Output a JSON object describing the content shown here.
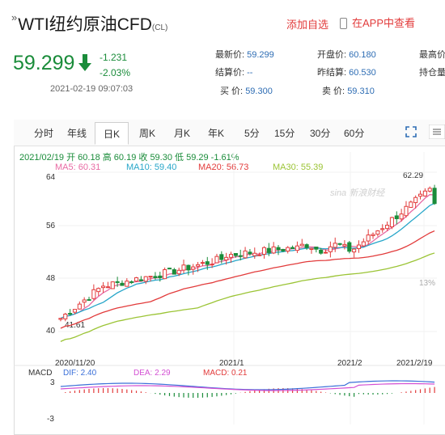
{
  "header": {
    "prefix": "»",
    "title": "WTI纽约原油CFD",
    "code": "(CL)",
    "add_watch": "添加自选",
    "app_view": "在APP中查看"
  },
  "quote": {
    "price": "59.299",
    "change": "-1.231",
    "change_pct": "-2.03%",
    "timestamp": "2021-02-19 09:07:03",
    "direction": "down"
  },
  "info": [
    {
      "label": "最新价:",
      "value": "59.299"
    },
    {
      "label": "开盘价:",
      "value": "60.180"
    },
    {
      "label": "最高价",
      "value": ""
    },
    {
      "label": "结算价:",
      "value": "--"
    },
    {
      "label": "昨结算:",
      "value": "60.530"
    },
    {
      "label": "持仓量",
      "value": ""
    },
    {
      "label": "买  价:",
      "value": "59.300"
    },
    {
      "label": "卖  价:",
      "value": "59.310"
    }
  ],
  "tabs": [
    "分时",
    "年线",
    "日K",
    "周K",
    "月K",
    "年K",
    "5分",
    "15分",
    "30分",
    "60分"
  ],
  "active_tab": "日K",
  "ohlc_line": "2021/02/19 开 60.18 高 60.19 收 59.30 低 59.29 -1.61%",
  "ma_labels": [
    {
      "text": "MA5: 60.31",
      "color": "#e86aa3"
    },
    {
      "text": "MA10: 59.40",
      "color": "#27a6c9"
    },
    {
      "text": "MA20: 56.73",
      "color": "#e23b3b"
    },
    {
      "text": "MA30: 55.39",
      "color": "#9bc435"
    }
  ],
  "watermark": "sina 新浪财经",
  "colors": {
    "up": "#e23b3b",
    "down": "#1a8c3a",
    "ma5": "#e86aa3",
    "ma10": "#27a6c9",
    "ma20": "#e23b3b",
    "ma30": "#9bc435",
    "dif": "#3a6fd8",
    "dea": "#d34fd3"
  },
  "chart_data": {
    "type": "candlestick",
    "y_ticks": [
      "64",
      "56",
      "48",
      "40"
    ],
    "pct_ticks": [
      "13%"
    ],
    "x_ticks": [
      "2020/11/20",
      "2021/1",
      "2021/2",
      "2021/2/19"
    ],
    "annotations": {
      "high": "62.29",
      "low": "41.61"
    },
    "ylim": [
      40,
      64
    ],
    "macd": {
      "label": "MACD",
      "dif": "DIF: 2.40",
      "dea": "DEA: 2.29",
      "macd": "MACD: 0.21",
      "y_ticks": [
        "3",
        "-3"
      ]
    }
  }
}
